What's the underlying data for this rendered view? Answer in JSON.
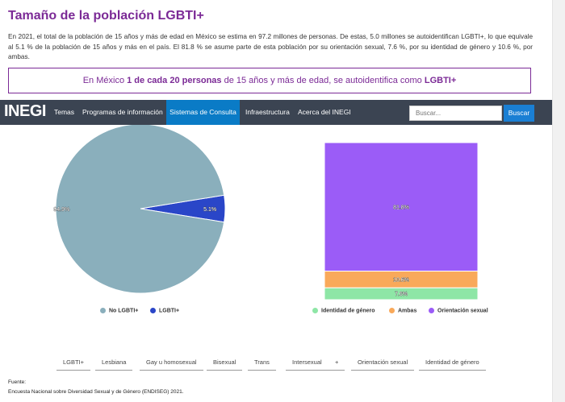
{
  "header": {
    "title": "Tamaño de la población LGBTI+",
    "intro": "En 2021, el total de la población de 15 años y más de edad en México se estima en 97.2 millones de personas. De estas, 5.0 millones se autoidentifican LGBTI+, lo que equivale al 5.1 % de la población de 15 años y más en el país. El 81.8 % se asume parte de esta población por su orientación sexual, 7.6 %, por su identidad de género y 10.6 %, por ambas."
  },
  "callout": {
    "pre": "En México ",
    "bold1": "1 de cada 20 personas",
    "mid": " de 15 años y más de edad, se autoidentifica como ",
    "bold2": "LGBTI+"
  },
  "nav": {
    "logo": "INEGI",
    "items": [
      "Temas",
      "Programas de información",
      "Sistemas de Consulta",
      "Infraestructura",
      "Acerca del INEGI"
    ],
    "active_index": 2,
    "search_placeholder": "Buscar...",
    "search_button": "Buscar"
  },
  "chart_data": [
    {
      "type": "pie",
      "slices": [
        {
          "name": "No LGBTI+",
          "value": 94.9,
          "label": "94.9%",
          "color": "#8aafbc"
        },
        {
          "name": "LGBTI+",
          "value": 5.1,
          "label": "5.1%",
          "color": "#2a46c8"
        }
      ],
      "legend": "bottom"
    },
    {
      "type": "bar",
      "stacked": true,
      "series": [
        {
          "name": "Identidad de género",
          "value": 7.6,
          "label": "7.6%",
          "color": "#8ee6a6"
        },
        {
          "name": "Ambas",
          "value": 10.6,
          "label": "10.6%",
          "color": "#f9a95a"
        },
        {
          "name": "Orientación sexual",
          "value": 81.8,
          "label": "81.8%",
          "color": "#9b5cf7"
        }
      ],
      "legend": "bottom"
    }
  ],
  "tags": [
    "LGBTI+",
    "Lesbiana",
    "Gay u homosexual",
    "Bisexual",
    "Trans",
    "Intersexual",
    "+",
    "Orientación sexual",
    "Identidad de género"
  ],
  "footer": {
    "label": "Fuente:",
    "text": "Encuesta Nacional sobre Diversidad Sexual y de Género (ENDISEG) 2021."
  }
}
